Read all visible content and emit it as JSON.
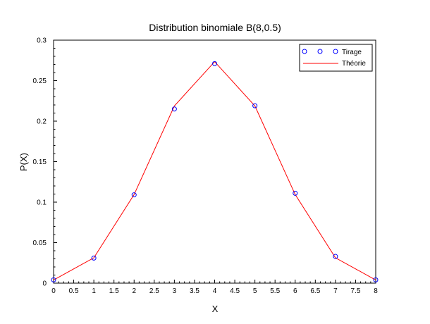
{
  "chart_data": {
    "type": "line",
    "title": "Distribution binomiale B(8,0.5)",
    "xlabel": "X",
    "ylabel": "P(X)",
    "xlim": [
      0,
      8
    ],
    "ylim": [
      0,
      0.3
    ],
    "x_ticks": [
      "0",
      "0.5",
      "1",
      "1.5",
      "2",
      "2.5",
      "3",
      "3.5",
      "4",
      "4.5",
      "5",
      "5.5",
      "6",
      "6.5",
      "7",
      "7.5",
      "8"
    ],
    "y_ticks": [
      "0",
      "0.05",
      "0.1",
      "0.15",
      "0.2",
      "0.25",
      "0.3"
    ],
    "grid": false,
    "legend_position": "top-right",
    "series": [
      {
        "name": "Tirage",
        "style": "markers",
        "marker": "circle",
        "color": "#0000ff",
        "x": [
          0,
          1,
          2,
          3,
          4,
          5,
          6,
          7,
          8
        ],
        "values": [
          0.004,
          0.031,
          0.109,
          0.215,
          0.271,
          0.219,
          0.111,
          0.033,
          0.004
        ]
      },
      {
        "name": "Théorie",
        "style": "line",
        "color": "#ff0000",
        "x": [
          0,
          1,
          2,
          3,
          4,
          5,
          6,
          7,
          8
        ],
        "values": [
          0.0039,
          0.0313,
          0.1094,
          0.2188,
          0.2734,
          0.2188,
          0.1094,
          0.0313,
          0.0039
        ]
      }
    ]
  }
}
